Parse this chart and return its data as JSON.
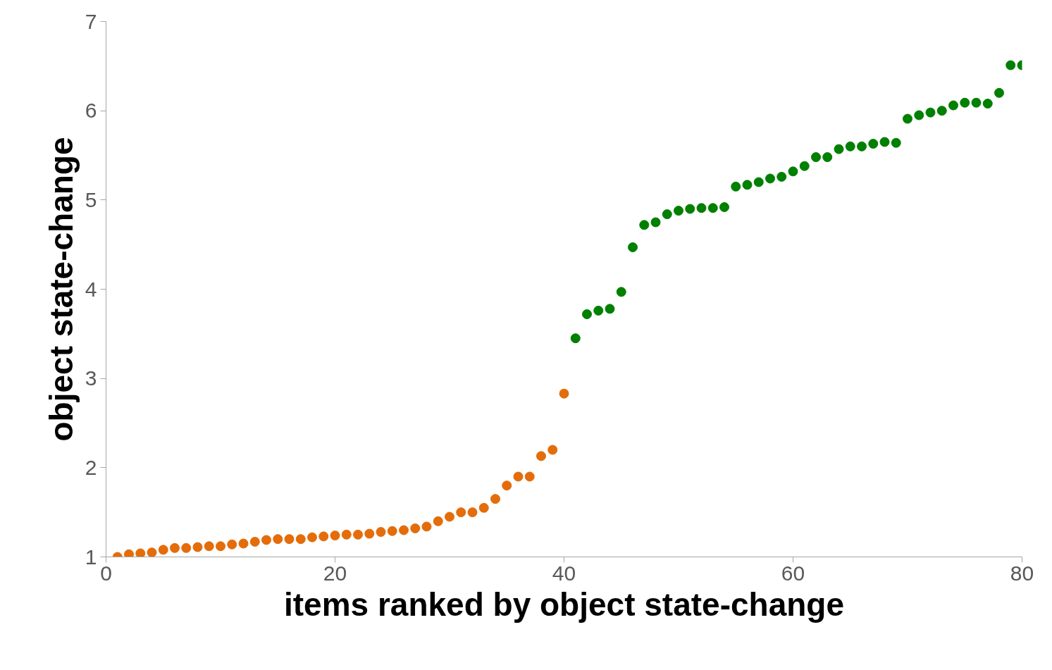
{
  "chart_data": {
    "type": "scatter",
    "xlabel": "items ranked by object state-change",
    "ylabel": "object state-change",
    "xlim": [
      0,
      80
    ],
    "ylim": [
      1,
      7
    ],
    "xticks": [
      0,
      20,
      40,
      60,
      80
    ],
    "yticks": [
      1,
      2,
      3,
      4,
      5,
      6,
      7
    ],
    "marker": "circle",
    "series": [
      {
        "color": "#e46c0a",
        "x": [
          1,
          2,
          3,
          4,
          5,
          6,
          7,
          8,
          9,
          10,
          11,
          12,
          13,
          14,
          15,
          16,
          17,
          18,
          19,
          20,
          21,
          22,
          23,
          24,
          25,
          26,
          27,
          28,
          29,
          30,
          31,
          32,
          33,
          34,
          35,
          36,
          37,
          38,
          39,
          40
        ],
        "values": [
          1.0,
          1.03,
          1.04,
          1.05,
          1.08,
          1.1,
          1.1,
          1.11,
          1.12,
          1.12,
          1.14,
          1.15,
          1.17,
          1.19,
          1.2,
          1.2,
          1.2,
          1.22,
          1.23,
          1.24,
          1.25,
          1.25,
          1.26,
          1.28,
          1.29,
          1.3,
          1.32,
          1.34,
          1.4,
          1.45,
          1.5,
          1.5,
          1.55,
          1.65,
          1.8,
          1.9,
          1.9,
          2.13,
          2.2,
          2.83
        ]
      },
      {
        "color": "#008000",
        "x": [
          41,
          42,
          43,
          44,
          45,
          46,
          47,
          48,
          49,
          50,
          51,
          52,
          53,
          54,
          55,
          56,
          57,
          58,
          59,
          60,
          61,
          62,
          63,
          64,
          65,
          66,
          67,
          68,
          69,
          70,
          71,
          72,
          73,
          74,
          75,
          76,
          77,
          78,
          79,
          80
        ],
        "values": [
          3.45,
          3.72,
          3.76,
          3.78,
          3.97,
          4.47,
          4.72,
          4.75,
          4.84,
          4.88,
          4.9,
          4.91,
          4.91,
          4.92,
          5.15,
          5.17,
          5.2,
          5.24,
          5.26,
          5.32,
          5.38,
          5.48,
          5.48,
          5.57,
          5.6,
          5.6,
          5.63,
          5.65,
          5.64,
          5.91,
          5.95,
          5.98,
          6.0,
          6.06,
          6.09,
          6.09,
          6.08,
          6.2,
          6.51,
          6.51
        ]
      }
    ]
  }
}
